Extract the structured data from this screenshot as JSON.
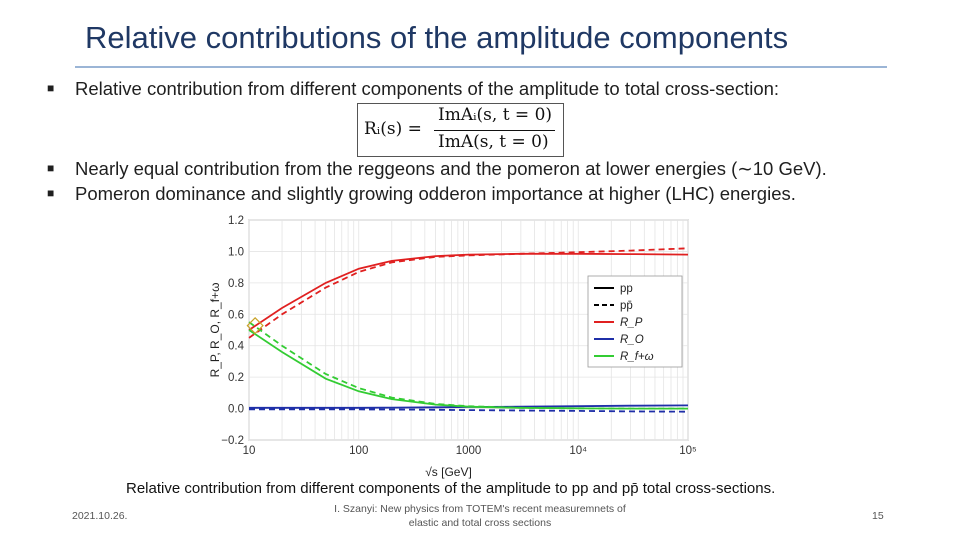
{
  "slide": {
    "title": "Relative contributions of the amplitude components",
    "bullets": [
      "Relative contribution from different components of the amplitude to total cross-section:",
      "Nearly equal contribution from the reggeons and the pomeron at lower energies (∼10 GeV).",
      "Pomeron dominance and slightly growing odderon importance at higher (LHC) energies."
    ],
    "formula": {
      "lhs": "Rᵢ(s) =",
      "numerator": "ImAᵢ(s, t = 0)",
      "denominator": "ImA(s, t = 0)"
    },
    "caption": "Relative contribution from different components of the amplitude to pp and pp̄ total cross-sections.",
    "footer": {
      "date": "2021.10.26.",
      "center": "I. Szanyi: New physics from TOTEM's recent measuremnets of elastic and total cross sections",
      "page": "15"
    }
  },
  "chart_data": {
    "type": "line",
    "xlabel": "√s [GeV]",
    "ylabel": "R_P, R_O, R_f+ω",
    "x_scale": "log",
    "xlim": [
      10,
      100000
    ],
    "ylim": [
      -0.2,
      1.2
    ],
    "x_ticks": [
      "10",
      "100",
      "1000",
      "10⁴",
      "10⁵"
    ],
    "y_ticks": [
      "−0.2",
      "0.0",
      "0.2",
      "0.4",
      "0.6",
      "0.8",
      "1.0",
      "1.2"
    ],
    "grid": true,
    "legend_position": "right",
    "legend": [
      {
        "label": "pp",
        "color": "#000000",
        "style": "solid"
      },
      {
        "label": "pp̄",
        "color": "#000000",
        "style": "dashed"
      },
      {
        "label": "R_P",
        "color": "#e02020",
        "style": "solid"
      },
      {
        "label": "R_O",
        "color": "#1f2fa8",
        "style": "solid"
      },
      {
        "label": "R_f+ω",
        "color": "#33cc33",
        "style": "solid"
      }
    ],
    "x": [
      10,
      20,
      50,
      100,
      200,
      500,
      1000,
      3000,
      10000,
      30000,
      100000
    ],
    "series": [
      {
        "name": "R_P pp",
        "color": "#e02020",
        "dash": false,
        "values": [
          0.5,
          0.64,
          0.8,
          0.89,
          0.94,
          0.97,
          0.98,
          0.985,
          0.985,
          0.983,
          0.98
        ]
      },
      {
        "name": "R_P pp̄",
        "color": "#e02020",
        "dash": true,
        "values": [
          0.45,
          0.6,
          0.77,
          0.87,
          0.93,
          0.965,
          0.975,
          0.985,
          0.995,
          1.005,
          1.02
        ]
      },
      {
        "name": "R_O pp",
        "color": "#1f2fa8",
        "dash": false,
        "values": [
          0.005,
          0.005,
          0.005,
          0.005,
          0.006,
          0.008,
          0.01,
          0.012,
          0.015,
          0.018,
          0.02
        ]
      },
      {
        "name": "R_O pp̄",
        "color": "#1f2fa8",
        "dash": true,
        "values": [
          -0.005,
          -0.005,
          -0.005,
          -0.005,
          -0.006,
          -0.008,
          -0.01,
          -0.012,
          -0.015,
          -0.018,
          -0.02
        ]
      },
      {
        "name": "R_f+ω pp",
        "color": "#33cc33",
        "dash": false,
        "values": [
          0.5,
          0.36,
          0.19,
          0.11,
          0.06,
          0.025,
          0.012,
          0.004,
          0.001,
          0.0,
          0.0
        ]
      },
      {
        "name": "R_f+ω pp̄",
        "color": "#33cc33",
        "dash": true,
        "values": [
          0.55,
          0.4,
          0.22,
          0.13,
          0.07,
          0.03,
          0.015,
          0.005,
          0.002,
          0.0,
          0.0
        ]
      }
    ]
  }
}
